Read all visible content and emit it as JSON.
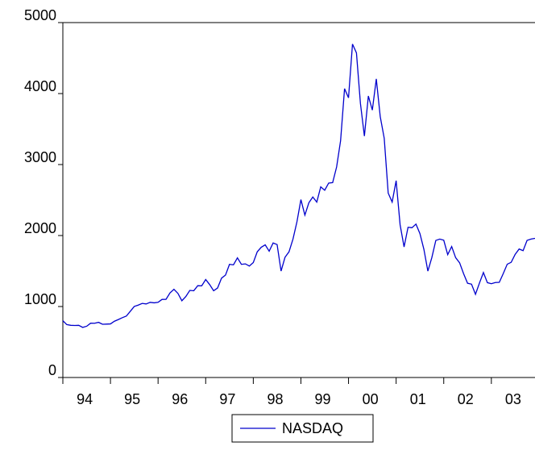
{
  "chart_data": {
    "type": "line",
    "categories": [
      null,
      null,
      null,
      null,
      null,
      null,
      "94",
      null,
      null,
      null,
      null,
      null,
      null,
      null,
      null,
      null,
      null,
      null,
      "95",
      null,
      null,
      null,
      null,
      null,
      null,
      null,
      null,
      null,
      null,
      null,
      "96",
      null,
      null,
      null,
      null,
      null,
      null,
      null,
      null,
      null,
      null,
      null,
      "97",
      null,
      null,
      null,
      null,
      null,
      null,
      null,
      null,
      null,
      null,
      null,
      "98",
      null,
      null,
      null,
      null,
      null,
      null,
      null,
      null,
      null,
      null,
      null,
      "99",
      null,
      null,
      null,
      null,
      null,
      null,
      null,
      null,
      null,
      null,
      null,
      "00",
      null,
      null,
      null,
      null,
      null,
      null,
      null,
      null,
      null,
      null,
      null,
      "01",
      null,
      null,
      null,
      null,
      null,
      null,
      null,
      null,
      null,
      null,
      null,
      "02",
      null,
      null,
      null,
      null,
      null,
      null,
      null,
      null,
      null,
      null,
      null,
      "03",
      null,
      null,
      null,
      null,
      null
    ],
    "series": [
      {
        "name": "NASDAQ",
        "color": "#0000cc",
        "values": [
          800,
          745,
          735,
          733,
          735,
          706,
          722,
          765,
          764,
          777,
          750,
          752,
          755,
          793,
          817,
          843,
          865,
          933,
          1001,
          1020,
          1044,
          1036,
          1059,
          1052,
          1059,
          1100,
          1101,
          1191,
          1243,
          1185,
          1081,
          1141,
          1227,
          1222,
          1293,
          1291,
          1380,
          1309,
          1222,
          1261,
          1400,
          1443,
          1594,
          1587,
          1686,
          1594,
          1601,
          1570,
          1620,
          1771,
          1835,
          1869,
          1779,
          1895,
          1873,
          1499,
          1694,
          1771,
          1950,
          2193,
          2506,
          2288,
          2461,
          2543,
          2471,
          2686,
          2638,
          2739,
          2746,
          2966,
          3336,
          4069,
          3940,
          4697,
          4573,
          3861,
          3401,
          3966,
          3767,
          4206,
          3673,
          3370,
          2598,
          2471,
          2773,
          2152,
          1840,
          2116,
          2110,
          2161,
          2027,
          1805,
          1499,
          1690,
          1931,
          1950,
          1934,
          1731,
          1845,
          1688,
          1616,
          1463,
          1328,
          1315,
          1172,
          1330,
          1479,
          1336,
          1321,
          1338,
          1341,
          1464,
          1596,
          1623,
          1735,
          1810,
          1787,
          1932,
          1950,
          1960
        ]
      }
    ],
    "ylim": [
      0,
      5000
    ],
    "yticks": [
      0,
      1000,
      2000,
      3000,
      4000,
      5000
    ]
  }
}
